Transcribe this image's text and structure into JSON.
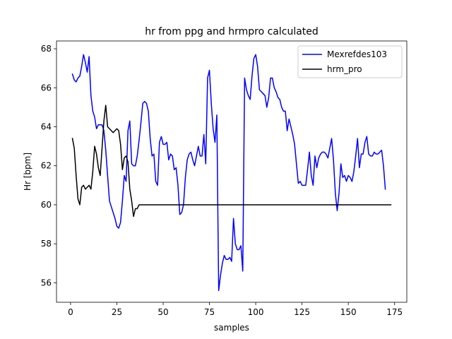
{
  "chart_data": {
    "type": "line",
    "title": "hr from ppg and hrmpro calculated",
    "xlabel": "samples",
    "ylabel": "Hr [bpm]",
    "xlim": [
      -7.6,
      181.6
    ],
    "ylim": [
      55.0,
      68.4
    ],
    "xticks": [
      0,
      25,
      50,
      75,
      100,
      125,
      150,
      175
    ],
    "yticks": [
      56,
      58,
      60,
      62,
      64,
      66,
      68
    ],
    "grid": false,
    "legend_position": "top-right",
    "series": [
      {
        "name": "Mexrefdes103",
        "color": "#0000ff",
        "points": [
          [
            1,
            66.7
          ],
          [
            2,
            66.4
          ],
          [
            3,
            66.3
          ],
          [
            4,
            66.5
          ],
          [
            5,
            66.6
          ],
          [
            6,
            67.1
          ],
          [
            7,
            67.7
          ],
          [
            8,
            67.3
          ],
          [
            9,
            66.8
          ],
          [
            10,
            67.6
          ],
          [
            11,
            65.6
          ],
          [
            12,
            64.8
          ],
          [
            13,
            64.5
          ],
          [
            14,
            63.9
          ],
          [
            15,
            64.1
          ],
          [
            16,
            64.1
          ],
          [
            17,
            64.1
          ],
          [
            18,
            63.8
          ],
          [
            19,
            62.8
          ],
          [
            20,
            61.5
          ],
          [
            21,
            60.2
          ],
          [
            22,
            59.9
          ],
          [
            23,
            59.6
          ],
          [
            24,
            59.3
          ],
          [
            25,
            58.9
          ],
          [
            26,
            58.8
          ],
          [
            27,
            59.1
          ],
          [
            28,
            60.2
          ],
          [
            29,
            61.5
          ],
          [
            30,
            61.2
          ],
          [
            31,
            63.8
          ],
          [
            32,
            64.3
          ],
          [
            33,
            62.1
          ],
          [
            34,
            62.0
          ],
          [
            35,
            62.0
          ],
          [
            36,
            62.5
          ],
          [
            37,
            63.3
          ],
          [
            38,
            64.2
          ],
          [
            39,
            65.2
          ],
          [
            40,
            65.3
          ],
          [
            41,
            65.2
          ],
          [
            42,
            64.8
          ],
          [
            43,
            63.4
          ],
          [
            44,
            62.5
          ],
          [
            45,
            62.6
          ],
          [
            46,
            61.2
          ],
          [
            47,
            61.0
          ],
          [
            48,
            63.2
          ],
          [
            49,
            63.5
          ],
          [
            50,
            63.1
          ],
          [
            51,
            63.1
          ],
          [
            52,
            63.2
          ],
          [
            53,
            62.3
          ],
          [
            54,
            62.6
          ],
          [
            55,
            62.5
          ],
          [
            56,
            61.8
          ],
          [
            57,
            61.9
          ],
          [
            58,
            61.0
          ],
          [
            59,
            59.5
          ],
          [
            60,
            59.6
          ],
          [
            61,
            60.0
          ],
          [
            62,
            61.4
          ],
          [
            63,
            62.3
          ],
          [
            64,
            62.6
          ],
          [
            65,
            62.7
          ],
          [
            66,
            62.3
          ],
          [
            67,
            62.0
          ],
          [
            68,
            62.5
          ],
          [
            69,
            63.0
          ],
          [
            70,
            62.5
          ],
          [
            71,
            62.5
          ],
          [
            72,
            63.6
          ],
          [
            73,
            62.1
          ],
          [
            74,
            66.5
          ],
          [
            75,
            66.9
          ],
          [
            76,
            65.2
          ],
          [
            77,
            63.9
          ],
          [
            78,
            63.2
          ],
          [
            79,
            64.6
          ],
          [
            80,
            55.6
          ],
          [
            81,
            56.4
          ],
          [
            82,
            57.0
          ],
          [
            83,
            57.4
          ],
          [
            84,
            57.2
          ],
          [
            85,
            57.2
          ],
          [
            86,
            57.3
          ],
          [
            87,
            57.1
          ],
          [
            88,
            59.3
          ],
          [
            89,
            58.0
          ],
          [
            90,
            57.7
          ],
          [
            91,
            57.7
          ],
          [
            92,
            57.9
          ],
          [
            93,
            56.6
          ],
          [
            94,
            66.5
          ],
          [
            95,
            65.9
          ],
          [
            96,
            65.6
          ],
          [
            97,
            65.4
          ],
          [
            98,
            66.6
          ],
          [
            99,
            67.5
          ],
          [
            100,
            67.7
          ],
          [
            101,
            67.1
          ],
          [
            102,
            65.9
          ],
          [
            103,
            65.8
          ],
          [
            104,
            65.7
          ],
          [
            105,
            65.6
          ],
          [
            106,
            65.0
          ],
          [
            107,
            65.5
          ],
          [
            108,
            66.5
          ],
          [
            109,
            66.5
          ],
          [
            110,
            66.0
          ],
          [
            111,
            65.8
          ],
          [
            112,
            65.5
          ],
          [
            113,
            65.4
          ],
          [
            114,
            65.0
          ],
          [
            115,
            64.8
          ],
          [
            116,
            64.8
          ],
          [
            117,
            63.8
          ],
          [
            118,
            64.4
          ],
          [
            119,
            64.0
          ],
          [
            120,
            63.6
          ],
          [
            121,
            63.1
          ],
          [
            122,
            62.1
          ],
          [
            123,
            61.1
          ],
          [
            124,
            61.2
          ],
          [
            125,
            61.0
          ],
          [
            126,
            61.0
          ],
          [
            127,
            61.0
          ],
          [
            128,
            61.8
          ],
          [
            129,
            62.7
          ],
          [
            130,
            61.5
          ],
          [
            131,
            61.0
          ],
          [
            132,
            62.5
          ],
          [
            133,
            61.9
          ],
          [
            134,
            62.4
          ],
          [
            135,
            62.6
          ],
          [
            136,
            62.7
          ],
          [
            137,
            62.7
          ],
          [
            138,
            62.6
          ],
          [
            139,
            62.4
          ],
          [
            140,
            62.9
          ],
          [
            141,
            63.4
          ],
          [
            142,
            62.3
          ],
          [
            143,
            60.6
          ],
          [
            144,
            59.7
          ],
          [
            145,
            60.6
          ],
          [
            146,
            62.1
          ],
          [
            147,
            61.4
          ],
          [
            148,
            61.5
          ],
          [
            149,
            61.2
          ],
          [
            150,
            61.5
          ],
          [
            151,
            61.4
          ],
          [
            152,
            61.2
          ],
          [
            153,
            61.7
          ],
          [
            154,
            62.5
          ],
          [
            155,
            63.4
          ],
          [
            156,
            61.9
          ],
          [
            157,
            62.6
          ],
          [
            158,
            62.6
          ],
          [
            159,
            63.2
          ],
          [
            160,
            63.5
          ],
          [
            161,
            62.6
          ],
          [
            162,
            62.5
          ],
          [
            163,
            62.5
          ],
          [
            164,
            62.7
          ],
          [
            165,
            62.6
          ],
          [
            166,
            62.6
          ],
          [
            167,
            62.7
          ],
          [
            168,
            62.8
          ],
          [
            169,
            62.0
          ],
          [
            170,
            60.8
          ]
        ]
      },
      {
        "name": "hrm_pro",
        "color": "#000000",
        "points": [
          [
            1,
            63.4
          ],
          [
            2,
            62.9
          ],
          [
            3,
            61.5
          ],
          [
            4,
            60.3
          ],
          [
            5,
            60.0
          ],
          [
            6,
            60.9
          ],
          [
            7,
            61.0
          ],
          [
            8,
            60.8
          ],
          [
            9,
            60.9
          ],
          [
            10,
            61.0
          ],
          [
            11,
            60.8
          ],
          [
            12,
            61.7
          ],
          [
            13,
            63.0
          ],
          [
            14,
            62.6
          ],
          [
            15,
            61.9
          ],
          [
            16,
            61.5
          ],
          [
            17,
            62.9
          ],
          [
            18,
            64.3
          ],
          [
            19,
            65.1
          ],
          [
            20,
            64.0
          ],
          [
            21,
            63.9
          ],
          [
            22,
            63.8
          ],
          [
            23,
            63.7
          ],
          [
            24,
            63.8
          ],
          [
            25,
            63.9
          ],
          [
            26,
            63.8
          ],
          [
            27,
            63.1
          ],
          [
            28,
            61.8
          ],
          [
            29,
            62.4
          ],
          [
            30,
            62.5
          ],
          [
            31,
            62.2
          ],
          [
            32,
            60.8
          ],
          [
            33,
            60.2
          ],
          [
            34,
            59.4
          ],
          [
            35,
            59.8
          ],
          [
            36,
            59.8
          ],
          [
            37,
            60.0
          ],
          [
            38,
            60.0
          ],
          [
            173,
            60.0
          ]
        ]
      }
    ]
  }
}
